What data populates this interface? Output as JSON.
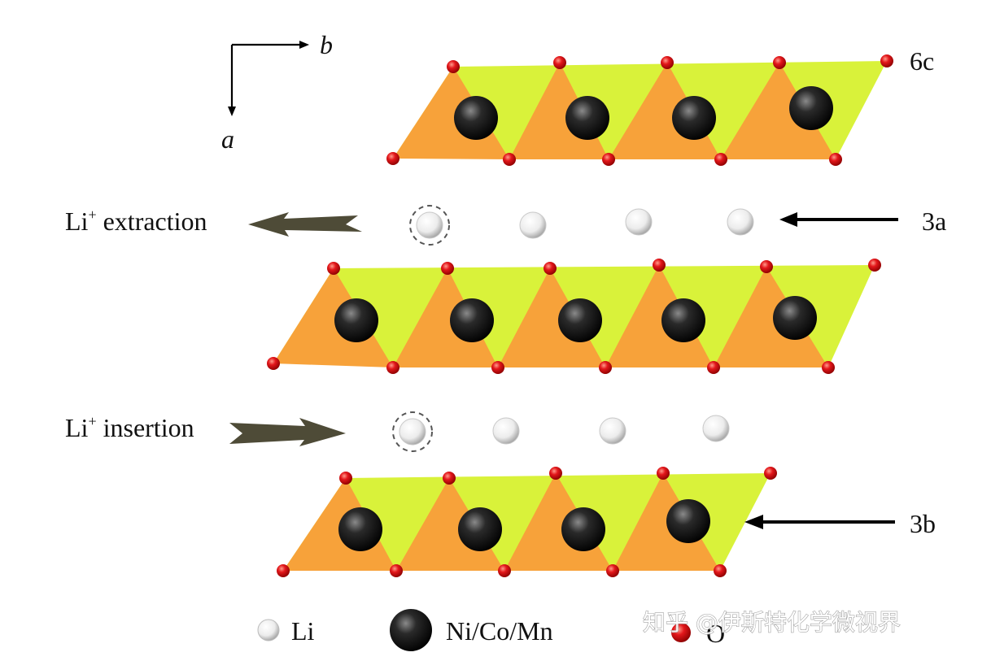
{
  "axes": {
    "horizontal": "b",
    "vertical": "a"
  },
  "sites": {
    "top_layer": "6c",
    "li_layer": "3a",
    "bottom_layer": "3b"
  },
  "processes": {
    "extraction": {
      "prefix": "Li",
      "superscript": "+",
      "text": " extraction"
    },
    "insertion": {
      "prefix": "Li",
      "superscript": "+",
      "text": " insertion"
    }
  },
  "legend": [
    {
      "symbol": "li-atom",
      "label": "Li"
    },
    {
      "symbol": "tm-atom",
      "label": "Ni/Co/Mn"
    },
    {
      "symbol": "o-atom",
      "label": "O"
    }
  ],
  "watermark": "知乎 @伊斯特化学微视界",
  "colors": {
    "orange": "#f7a23a",
    "yellow_green": "#d9f23a",
    "oxygen": "#e3171b",
    "arrow": "#4e4b37"
  }
}
